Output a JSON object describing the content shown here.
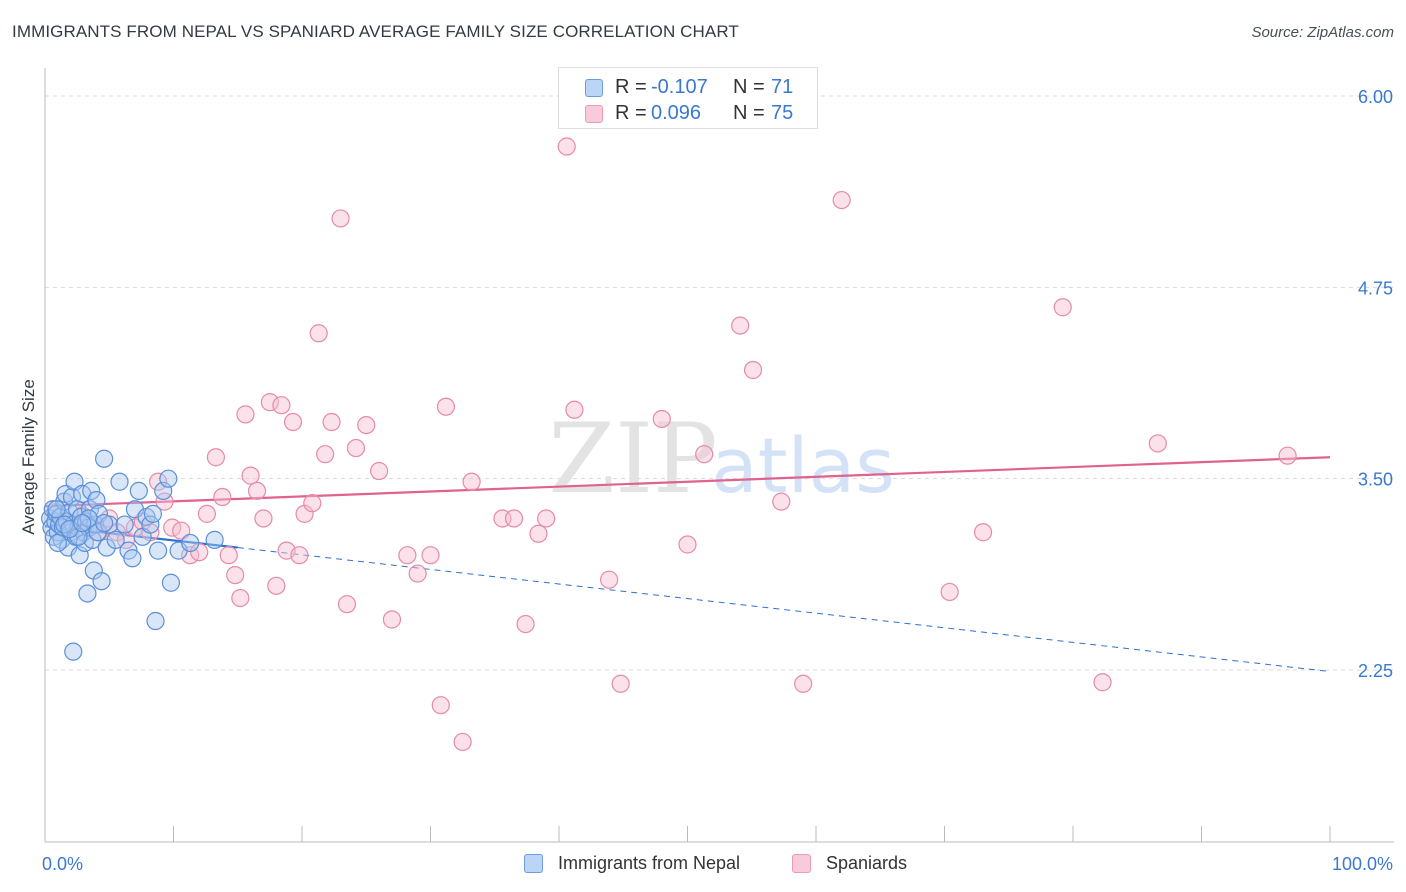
{
  "title": "IMMIGRANTS FROM NEPAL VS SPANIARD AVERAGE FAMILY SIZE CORRELATION CHART",
  "source": "Source: ZipAtlas.com",
  "watermark": {
    "zip": "ZIP",
    "atlas": "atlas"
  },
  "legend_top": [
    {
      "r_label": "R =",
      "r_value": "-0.107",
      "n_label": "N =",
      "n_value": "71"
    },
    {
      "r_label": "R =",
      "r_value": "0.096",
      "n_label": "N =",
      "n_value": "75"
    }
  ],
  "legend_bottom": [
    {
      "label": "Immigrants from Nepal"
    },
    {
      "label": "Spaniards"
    }
  ],
  "colors": {
    "blue_fill": "#a9c8f0",
    "blue_stroke": "#5b8fd9",
    "blue_line": "#2f6fd0",
    "pink_fill": "#f7bfd0",
    "pink_stroke": "#e68aa8",
    "pink_line": "#e0628d",
    "axis_label": "#3a78d0",
    "grid": "#d9d9d9"
  },
  "chart_data": {
    "type": "scatter",
    "title": "IMMIGRANTS FROM NEPAL VS SPANIARD AVERAGE FAMILY SIZE CORRELATION CHART",
    "xlabel": "",
    "ylabel": "Average Family Size",
    "xlim": [
      0,
      100
    ],
    "ylim": [
      1.0,
      6.1
    ],
    "x_tick_labels": [
      {
        "value": 0,
        "label": "0.0%"
      },
      {
        "value": 100,
        "label": "100.0%"
      }
    ],
    "y_tick_labels": [
      {
        "value": 2.25,
        "label": "2.25"
      },
      {
        "value": 3.5,
        "label": "3.50"
      },
      {
        "value": 4.75,
        "label": "4.75"
      },
      {
        "value": 6.0,
        "label": "6.00"
      }
    ],
    "series": [
      {
        "name": "Immigrants from Nepal",
        "color": "blue",
        "points": [
          [
            0.4,
            3.24
          ],
          [
            0.5,
            3.18
          ],
          [
            0.6,
            3.3
          ],
          [
            0.7,
            3.12
          ],
          [
            0.8,
            3.22
          ],
          [
            0.9,
            3.27
          ],
          [
            1.0,
            3.15
          ],
          [
            1.1,
            3.2
          ],
          [
            1.2,
            3.25
          ],
          [
            1.3,
            3.1
          ],
          [
            1.4,
            3.18
          ],
          [
            1.5,
            3.35
          ],
          [
            1.6,
            3.4
          ],
          [
            1.7,
            3.22
          ],
          [
            1.8,
            3.05
          ],
          [
            1.9,
            3.28
          ],
          [
            2.0,
            3.15
          ],
          [
            2.1,
            3.38
          ],
          [
            2.2,
            3.2
          ],
          [
            2.3,
            3.48
          ],
          [
            2.4,
            3.12
          ],
          [
            2.5,
            3.3
          ],
          [
            2.6,
            3.18
          ],
          [
            2.7,
            3.0
          ],
          [
            2.8,
            3.25
          ],
          [
            2.9,
            3.4
          ],
          [
            3.0,
            3.15
          ],
          [
            3.1,
            3.08
          ],
          [
            3.2,
            3.22
          ],
          [
            3.3,
            2.75
          ],
          [
            3.4,
            3.18
          ],
          [
            3.5,
            3.3
          ],
          [
            3.6,
            3.42
          ],
          [
            3.7,
            3.1
          ],
          [
            3.8,
            2.9
          ],
          [
            3.9,
            3.2
          ],
          [
            4.0,
            3.36
          ],
          [
            4.1,
            3.15
          ],
          [
            4.2,
            3.27
          ],
          [
            4.4,
            2.83
          ],
          [
            4.6,
            3.63
          ],
          [
            4.8,
            3.05
          ],
          [
            5.0,
            3.2
          ],
          [
            5.5,
            3.1
          ],
          [
            5.8,
            3.48
          ],
          [
            6.2,
            3.2
          ],
          [
            6.5,
            3.03
          ],
          [
            6.8,
            2.98
          ],
          [
            7.0,
            3.3
          ],
          [
            7.3,
            3.42
          ],
          [
            7.6,
            3.12
          ],
          [
            7.9,
            3.25
          ],
          [
            8.2,
            3.2
          ],
          [
            8.4,
            3.27
          ],
          [
            8.6,
            2.57
          ],
          [
            8.8,
            3.03
          ],
          [
            9.2,
            3.42
          ],
          [
            9.6,
            3.5
          ],
          [
            9.8,
            2.82
          ],
          [
            10.4,
            3.03
          ],
          [
            11.3,
            3.08
          ],
          [
            13.2,
            3.1
          ],
          [
            1.0,
            3.08
          ],
          [
            2.2,
            2.37
          ],
          [
            1.5,
            3.2
          ],
          [
            2.6,
            3.12
          ],
          [
            3.4,
            3.24
          ],
          [
            0.9,
            3.3
          ],
          [
            1.9,
            3.17
          ],
          [
            2.9,
            3.21
          ],
          [
            4.6,
            3.21
          ]
        ]
      },
      {
        "name": "Spaniards",
        "color": "pink",
        "points": [
          [
            0.8,
            3.28
          ],
          [
            1.5,
            3.22
          ],
          [
            2.2,
            3.18
          ],
          [
            2.9,
            3.26
          ],
          [
            3.5,
            3.2
          ],
          [
            4.2,
            3.15
          ],
          [
            5.0,
            3.24
          ],
          [
            5.6,
            3.15
          ],
          [
            6.3,
            3.1
          ],
          [
            7.0,
            3.18
          ],
          [
            7.6,
            3.22
          ],
          [
            8.2,
            3.15
          ],
          [
            8.8,
            3.48
          ],
          [
            9.3,
            3.35
          ],
          [
            9.9,
            3.18
          ],
          [
            10.6,
            3.16
          ],
          [
            11.3,
            3.0
          ],
          [
            12.0,
            3.02
          ],
          [
            12.6,
            3.27
          ],
          [
            13.3,
            3.64
          ],
          [
            13.8,
            3.38
          ],
          [
            14.3,
            3.0
          ],
          [
            14.8,
            2.87
          ],
          [
            15.2,
            2.72
          ],
          [
            15.6,
            3.92
          ],
          [
            16.0,
            3.52
          ],
          [
            16.5,
            3.42
          ],
          [
            17.0,
            3.24
          ],
          [
            17.5,
            4.0
          ],
          [
            18.0,
            2.8
          ],
          [
            18.4,
            3.98
          ],
          [
            18.8,
            3.03
          ],
          [
            19.3,
            3.87
          ],
          [
            19.8,
            3.0
          ],
          [
            20.2,
            3.27
          ],
          [
            20.8,
            3.34
          ],
          [
            21.3,
            4.45
          ],
          [
            21.8,
            3.66
          ],
          [
            22.3,
            3.87
          ],
          [
            23.0,
            5.2
          ],
          [
            23.5,
            2.68
          ],
          [
            24.2,
            3.7
          ],
          [
            25.0,
            3.85
          ],
          [
            26.0,
            3.55
          ],
          [
            27.0,
            2.58
          ],
          [
            28.2,
            3.0
          ],
          [
            29.0,
            2.88
          ],
          [
            30.0,
            3.0
          ],
          [
            30.8,
            2.02
          ],
          [
            31.2,
            3.97
          ],
          [
            32.5,
            1.78
          ],
          [
            33.2,
            3.48
          ],
          [
            35.6,
            3.24
          ],
          [
            36.5,
            3.24
          ],
          [
            37.4,
            2.55
          ],
          [
            38.4,
            3.14
          ],
          [
            39.0,
            3.24
          ],
          [
            40.6,
            5.67
          ],
          [
            41.2,
            3.95
          ],
          [
            43.9,
            2.84
          ],
          [
            44.8,
            2.16
          ],
          [
            48.0,
            3.89
          ],
          [
            50.0,
            3.07
          ],
          [
            51.3,
            3.66
          ],
          [
            54.1,
            4.5
          ],
          [
            55.1,
            4.21
          ],
          [
            57.3,
            3.35
          ],
          [
            59.0,
            2.16
          ],
          [
            62.0,
            5.32
          ],
          [
            70.4,
            2.76
          ],
          [
            73.0,
            3.15
          ],
          [
            79.2,
            4.62
          ],
          [
            82.3,
            2.17
          ],
          [
            86.6,
            3.73
          ],
          [
            96.7,
            3.65
          ]
        ]
      }
    ],
    "trend_lines": [
      {
        "series": "Immigrants from Nepal",
        "x": [
          0,
          15
        ],
        "y": [
          3.19,
          3.05
        ],
        "style": "solid"
      },
      {
        "series": "Immigrants from Nepal",
        "x": [
          15,
          100
        ],
        "y": [
          3.05,
          2.24
        ],
        "style": "dashed"
      },
      {
        "series": "Spaniards",
        "x": [
          0,
          100
        ],
        "y": [
          3.32,
          3.64
        ],
        "style": "solid"
      }
    ]
  }
}
